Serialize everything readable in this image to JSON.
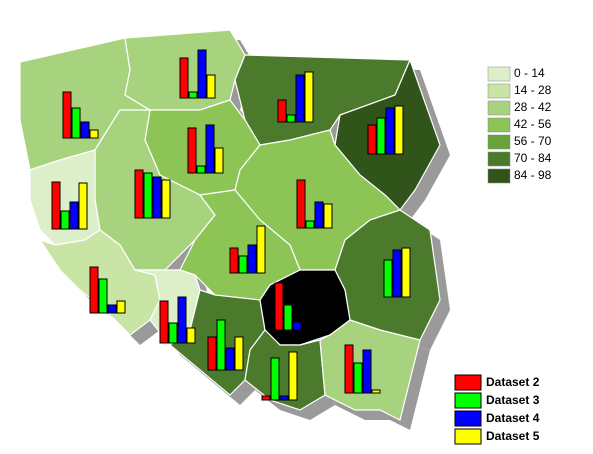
{
  "legend": {
    "classes": [
      {
        "label": "0 - 14",
        "color": "#dcefc8"
      },
      {
        "label": "14 - 28",
        "color": "#c8e5a6"
      },
      {
        "label": "28 - 42",
        "color": "#a8d37e"
      },
      {
        "label": "42 - 56",
        "color": "#8cc456"
      },
      {
        "label": "56 - 70",
        "color": "#68a23c"
      },
      {
        "label": "70 - 84",
        "color": "#4b7a2c"
      },
      {
        "label": "84 - 98",
        "color": "#31541b"
      }
    ]
  },
  "datasets": [
    {
      "name": "Dataset 2",
      "color": "#ff0000"
    },
    {
      "name": "Dataset 3",
      "color": "#00ff00"
    },
    {
      "name": "Dataset 4",
      "color": "#0000ff"
    },
    {
      "name": "Dataset 5",
      "color": "#ffff00"
    }
  ],
  "regions": [
    {
      "fill": "#a8d37e",
      "values": [
        46,
        30,
        16,
        8
      ]
    },
    {
      "fill": "#a8d37e",
      "values": [
        40,
        6,
        48,
        23
      ]
    },
    {
      "fill": "#4b7a2c",
      "values": [
        22,
        7,
        47,
        50
      ]
    },
    {
      "fill": "#31541b",
      "values": [
        29,
        36,
        46,
        48
      ]
    },
    {
      "fill": "#8cc456",
      "values": [
        45,
        7,
        48,
        25
      ]
    },
    {
      "fill": "#a8d37e",
      "values": [
        48,
        45,
        41,
        38
      ]
    },
    {
      "fill": "#dcefc8",
      "values": [
        47,
        18,
        27,
        46
      ]
    },
    {
      "fill": "#8cc456",
      "values": [
        48,
        7,
        26,
        24
      ]
    },
    {
      "fill": "#8cc456",
      "values": [
        25,
        17,
        28,
        47
      ]
    },
    {
      "fill": "#4b7a2c",
      "values": [
        0,
        37,
        47,
        49
      ]
    },
    {
      "fill": "#c8e5a6",
      "values": [
        46,
        34,
        8,
        12
      ]
    },
    {
      "fill": "#dcefc8",
      "values": [
        42,
        20,
        46,
        15
      ]
    },
    {
      "fill": "#4b7a2c",
      "values": [
        33,
        50,
        22,
        33
      ]
    },
    {
      "fill": "#000000",
      "values": [
        47,
        25,
        8,
        0
      ]
    },
    {
      "fill": "#4b7a2c",
      "values": [
        4,
        42,
        4,
        48
      ]
    },
    {
      "fill": "#a8d37e",
      "values": [
        48,
        30,
        43,
        3
      ]
    }
  ]
}
